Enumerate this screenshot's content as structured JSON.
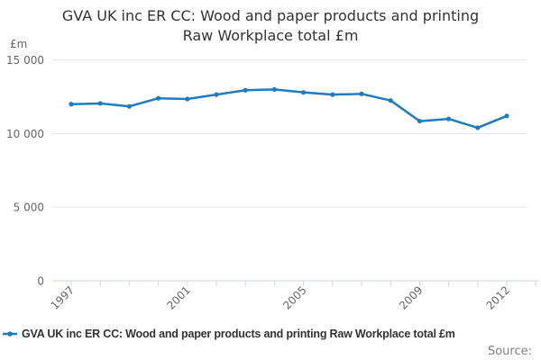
{
  "title": {
    "line1": "GVA UK inc ER CC: Wood and paper products and printing",
    "line2": "Raw Workplace total £m"
  },
  "y_axis": {
    "unit_label": "£m",
    "ticks": [
      {
        "value": 15000,
        "label": "15 000"
      },
      {
        "value": 10000,
        "label": "10 000"
      },
      {
        "value": 5000,
        "label": "5 000"
      },
      {
        "value": 0,
        "label": "0"
      }
    ]
  },
  "x_axis": {
    "labels": [
      "1997",
      "2001",
      "2005",
      "2009",
      "2012"
    ]
  },
  "legend": {
    "label": "GVA UK inc ER CC: Wood and paper products and printing Raw Workplace total £m"
  },
  "source": {
    "label": "Source:"
  },
  "colors": {
    "line": "#1d7cc1",
    "grid": "#e6e6e6",
    "axis": "#ccd6eb",
    "tick_label": "#666666",
    "title": "#333333"
  },
  "chart_data": {
    "type": "line",
    "title": "GVA UK inc ER CC: Wood and paper products and printing Raw Workplace total £m",
    "xlabel": "",
    "ylabel": "£m",
    "x": [
      1997,
      1998,
      1999,
      2000,
      2001,
      2002,
      2003,
      2004,
      2005,
      2006,
      2007,
      2008,
      2009,
      2010,
      2011,
      2012
    ],
    "values": [
      12000,
      12050,
      11850,
      12400,
      12350,
      12650,
      12950,
      13000,
      12800,
      12650,
      12700,
      12250,
      10850,
      11000,
      10400,
      11200
    ],
    "ylim": [
      0,
      15000
    ],
    "y_tick_interval": 5000,
    "grid": "horizontal",
    "legend_position": "bottom",
    "marker": "circle"
  }
}
